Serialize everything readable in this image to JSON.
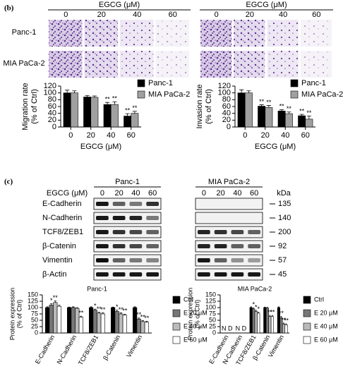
{
  "panel_labels": [
    "(b)",
    "(c)"
  ],
  "cell_images": {
    "header": "EGCG (μM)",
    "columns": [
      "0",
      "20",
      "40",
      "60"
    ],
    "rows": [
      "Panc-1",
      "MIA PaCa-2"
    ]
  },
  "blots": {
    "dose_label": "EGCG (μM)",
    "lanes": [
      "0",
      "20",
      "40",
      "60"
    ],
    "cell_lines": [
      "Panc-1",
      "MIA PaCa-2"
    ],
    "proteins": [
      "E-Cadherin",
      "N-Cadherin",
      "TCF8/ZEB1",
      "β-Catenin",
      "Vimentin",
      "β-Actin"
    ],
    "unit": "kDa",
    "sizes": [
      "135",
      "140",
      "200",
      "92",
      "57",
      "45"
    ]
  },
  "chart_data": [
    {
      "type": "bar",
      "ylabel": [
        "Migration rate",
        "(% of Ctrl)"
      ],
      "xlabel": "EGCG (μM)",
      "categories": [
        "0",
        "20",
        "40",
        "60"
      ],
      "series": [
        {
          "name": "Panc-1",
          "color": "#000000",
          "values": [
            100,
            88,
            66,
            32
          ],
          "errors": [
            8,
            4,
            6,
            7
          ],
          "stars": [
            null,
            null,
            "**",
            "**"
          ]
        },
        {
          "name": "MIA PaCa-2",
          "color": "#a0a0a0",
          "values": [
            100,
            87,
            66,
            40
          ],
          "errors": [
            6,
            4,
            8,
            6
          ],
          "stars": [
            null,
            null,
            "**",
            "**"
          ]
        }
      ],
      "ylim": [
        0,
        120
      ],
      "yticks": [
        0,
        20,
        40,
        60,
        80,
        100,
        120
      ],
      "legend": "top-right"
    },
    {
      "type": "bar",
      "ylabel": [
        "Invasion rate",
        "(% of Ctrl)"
      ],
      "xlabel": "EGCG (μM)",
      "categories": [
        "0",
        "20",
        "40",
        "60"
      ],
      "series": [
        {
          "name": "Panc-1",
          "color": "#000000",
          "values": [
            100,
            61,
            47,
            33
          ],
          "errors": [
            9,
            4,
            4,
            4
          ],
          "stars": [
            null,
            "**",
            "**",
            "**"
          ]
        },
        {
          "name": "MIA PaCa-2",
          "color": "#a0a0a0",
          "values": [
            100,
            57,
            39,
            23
          ],
          "errors": [
            6,
            6,
            5,
            9
          ],
          "stars": [
            null,
            "**",
            "**",
            "**"
          ]
        }
      ],
      "ylim": [
        0,
        120
      ],
      "yticks": [
        0,
        20,
        40,
        60,
        80,
        100,
        120
      ],
      "legend": "top-right"
    },
    {
      "type": "bar",
      "title": "Panc-1",
      "ylabel": [
        "Protein expression",
        "(% of Ctrl)"
      ],
      "categories": [
        "E-Cadherin",
        "N-Cadherin",
        "TCF8/ZEB1",
        "β-Catenin",
        "Vimentin"
      ],
      "series": [
        {
          "name": "Ctrl",
          "color": "#000000",
          "values": [
            100,
            100,
            100,
            100,
            100
          ],
          "errors": [
            3,
            2,
            3,
            2,
            3
          ],
          "stars": [
            null,
            null,
            null,
            null,
            null
          ]
        },
        {
          "name": "E 20 μM",
          "color": "#777777",
          "values": [
            110,
            100,
            90,
            85,
            55
          ],
          "errors": [
            5,
            3,
            4,
            5,
            4
          ],
          "stars": [
            "*",
            null,
            "*",
            "*",
            "**"
          ]
        },
        {
          "name": "E 40 μM",
          "color": "#bbbbbb",
          "values": [
            120,
            97,
            78,
            75,
            45
          ],
          "errors": [
            6,
            3,
            4,
            4,
            4
          ],
          "stars": [
            "**",
            null,
            "**",
            "**",
            "**"
          ]
        },
        {
          "name": "E 60 μM",
          "color": "#ffffff",
          "values": [
            105,
            62,
            75,
            70,
            42
          ],
          "errors": [
            4,
            4,
            4,
            4,
            4
          ],
          "stars": [
            null,
            "**",
            "**",
            "**",
            "**"
          ]
        }
      ],
      "ylim": [
        0,
        150
      ],
      "yticks": [
        0,
        25,
        50,
        75,
        100,
        125,
        150
      ],
      "legend": "right"
    },
    {
      "type": "bar",
      "title": "MIA PaCa-2",
      "ylabel": [
        "Protein expression",
        "(% of Ctrl)"
      ],
      "categories": [
        "E-Cadherin",
        "N-Cadherin",
        "TCF8/ZEB1",
        "β-Catenin",
        "Vimentin"
      ],
      "series": [
        {
          "name": "Ctrl",
          "color": "#000000",
          "values": [
            null,
            null,
            100,
            100,
            100
          ],
          "errors": [
            null,
            null,
            3,
            2,
            3
          ],
          "stars": [
            null,
            null,
            null,
            null,
            null
          ]
        },
        {
          "name": "E 20 μM",
          "color": "#777777",
          "values": [
            null,
            null,
            95,
            98,
            60
          ],
          "errors": [
            null,
            null,
            4,
            3,
            5
          ],
          "stars": [
            null,
            null,
            "*",
            null,
            "**"
          ]
        },
        {
          "name": "E 40 μM",
          "color": "#bbbbbb",
          "values": [
            null,
            null,
            85,
            65,
            35
          ],
          "errors": [
            null,
            null,
            4,
            4,
            4
          ],
          "stars": [
            null,
            null,
            "*",
            "**",
            "**"
          ]
        },
        {
          "name": "E 60 μM",
          "color": "#ffffff",
          "values": [
            null,
            null,
            78,
            65,
            32
          ],
          "errors": [
            null,
            null,
            4,
            4,
            4
          ],
          "stars": [
            null,
            null,
            "*",
            "**",
            "**"
          ]
        }
      ],
      "missing_labels": [
        "N D",
        "N D",
        null,
        null,
        null
      ],
      "ylim": [
        0,
        150
      ],
      "yticks": [
        0,
        25,
        50,
        75,
        100,
        125,
        150
      ],
      "legend": "right"
    }
  ]
}
